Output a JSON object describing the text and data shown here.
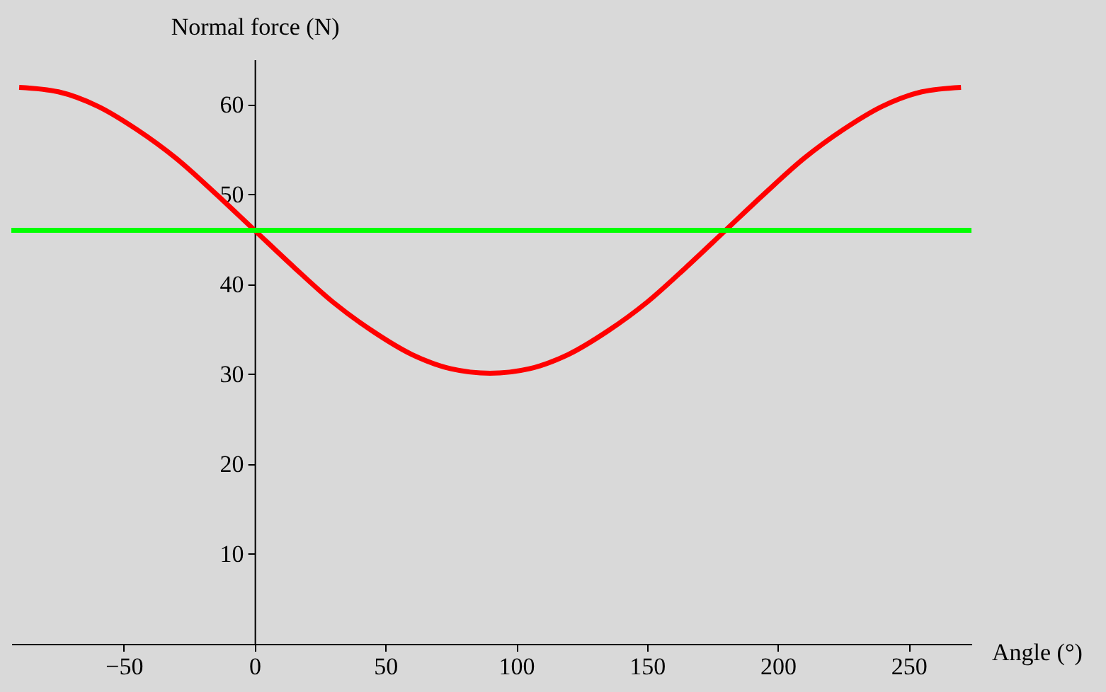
{
  "chart_data": {
    "type": "line",
    "xlabel": "Angle (°)",
    "ylabel": "Normal force (N)",
    "xlim": [
      -93,
      274
    ],
    "ylim": [
      0,
      65
    ],
    "xticks": [
      -50,
      0,
      50,
      100,
      150,
      200,
      250
    ],
    "yticks": [
      10,
      20,
      30,
      40,
      50,
      60
    ],
    "line_style": "solid",
    "marker": "none",
    "series": [
      {
        "color": "#ff0000",
        "x": [
          -90,
          -75,
          -60,
          -45,
          -30,
          -15,
          0,
          15,
          30,
          45,
          60,
          75,
          90,
          105,
          120,
          135,
          150,
          165,
          180,
          195,
          210,
          225,
          240,
          255,
          270
        ],
        "values": [
          61.9,
          61.4,
          59.8,
          57.2,
          54.0,
          50.1,
          46.0,
          41.9,
          38.0,
          34.8,
          32.2,
          30.6,
          30.1,
          30.6,
          32.2,
          34.8,
          38.0,
          41.9,
          46.0,
          50.1,
          54.0,
          57.2,
          59.8,
          61.4,
          61.9
        ]
      },
      {
        "color": "#00ff00",
        "x": [
          -93,
          274
        ],
        "values": [
          46,
          46
        ]
      }
    ]
  }
}
